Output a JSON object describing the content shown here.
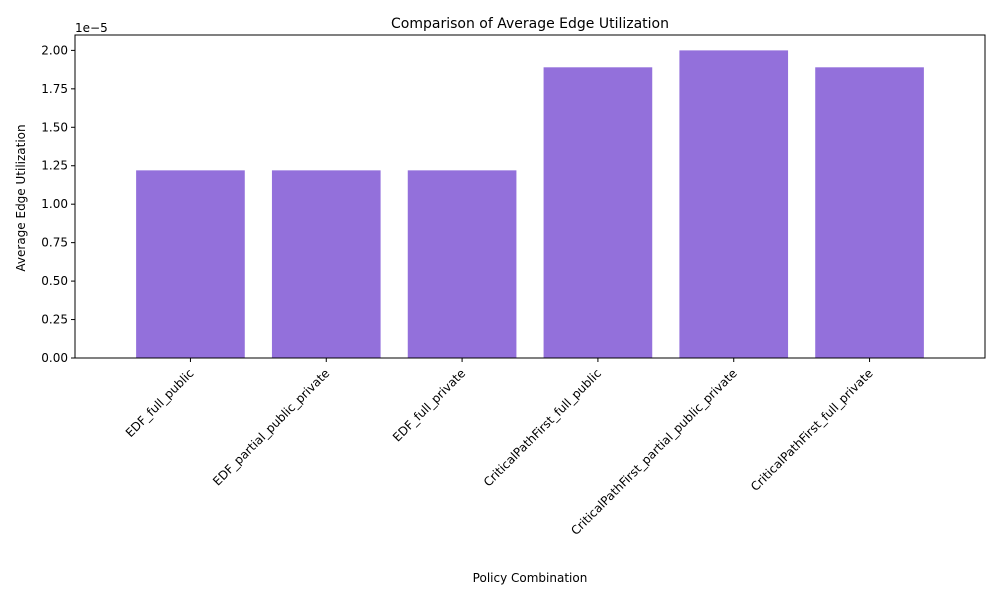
{
  "chart_data": {
    "type": "bar",
    "title": "Comparison of Average Edge Utilization",
    "xlabel": "Policy Combination",
    "ylabel": "Average Edge Utilization",
    "y_offset_label": "1e−5",
    "y_scale": 1e-05,
    "categories": [
      "EDF_full_public",
      "EDF_partial_public_private",
      "EDF_full_private",
      "CriticalPathFirst_full_public",
      "CriticalPathFirst_partial_public_private",
      "CriticalPathFirst_full_private"
    ],
    "values": [
      1.22e-05,
      1.22e-05,
      1.22e-05,
      1.89e-05,
      2e-05,
      1.89e-05
    ],
    "ylim": [
      0,
      2.1e-05
    ],
    "yticks": [
      "0.00",
      "0.25",
      "0.50",
      "0.75",
      "1.00",
      "1.25",
      "1.50",
      "1.75",
      "2.00"
    ],
    "grid": false,
    "bar_color": "#9370DB"
  }
}
